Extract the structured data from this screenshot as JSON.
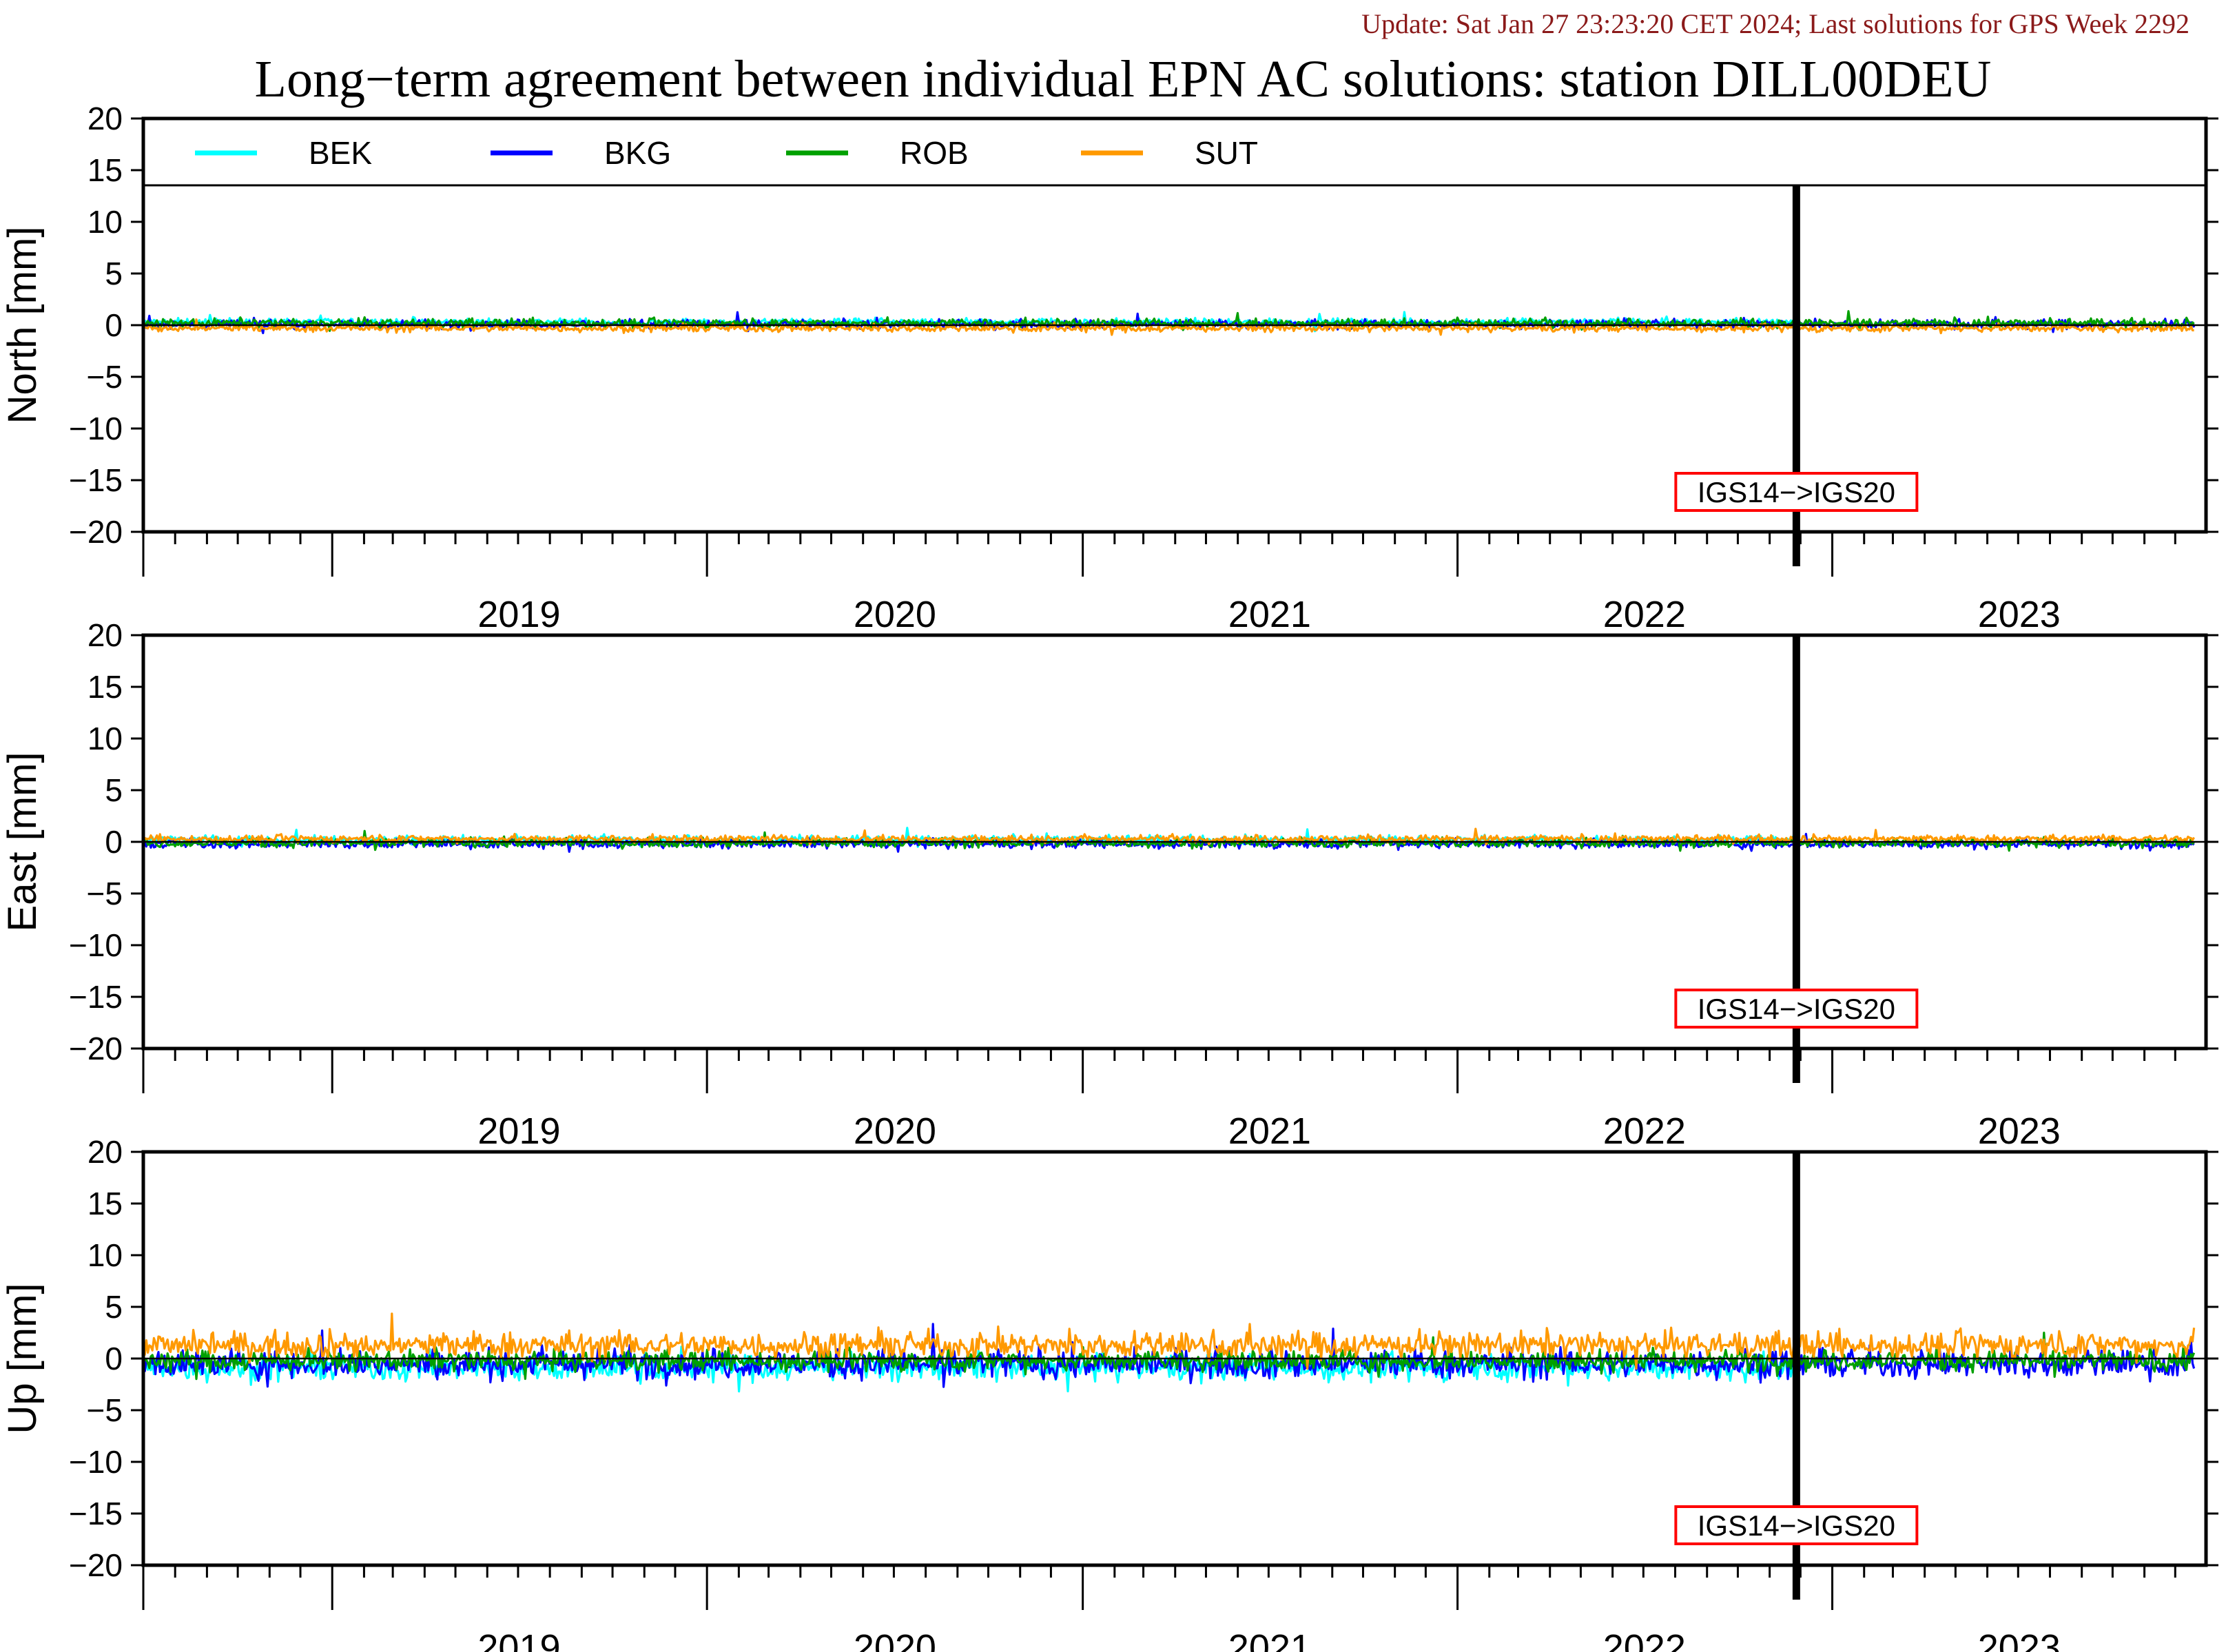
{
  "header": {
    "update_text": "Update: Sat Jan 27 23:23:20 CET 2024; Last solutions for GPS Week 2292",
    "update_color": "#8b1a1a"
  },
  "chart_data": {
    "type": "line",
    "title": "Long−term agreement between individual EPN AC solutions: station DILL00DEU",
    "x_range": [
      "2018-07-01",
      "2023-12-31"
    ],
    "x_tick_labels": [
      "2019",
      "2020",
      "2021",
      "2022",
      "2023"
    ],
    "y_range": [
      -20,
      20
    ],
    "y_ticks": [
      20,
      15,
      10,
      5,
      0,
      -5,
      -10,
      -15,
      -20
    ],
    "y_tick_labels": [
      "20",
      "15",
      "10",
      "5",
      "0",
      "−5",
      "−10",
      "−15",
      "−20"
    ],
    "grid": false,
    "legend": {
      "placement": "top",
      "entries": [
        {
          "name": "BEK",
          "color": "#00ffff"
        },
        {
          "name": "BKG",
          "color": "#0000ff"
        },
        {
          "name": "ROB",
          "color": "#00a000"
        },
        {
          "name": "SUT",
          "color": "#ff9900"
        }
      ]
    },
    "event": {
      "date": "2022-11-27",
      "label": "IGS14−>IGS20",
      "label_box_color": "#ff0000"
    },
    "panels": [
      {
        "ylabel": "North [mm]",
        "has_legend": true,
        "series": [
          {
            "name": "BEK",
            "x_start": "2018-07-01",
            "x_end": "2022-11-27",
            "mean_mm": 0.3,
            "noise_mm": 0.25
          },
          {
            "name": "BKG",
            "x_start": "2018-07-01",
            "x_end": "2023-12-20",
            "mean_mm": 0.1,
            "noise_mm": 0.3
          },
          {
            "name": "ROB",
            "x_start": "2018-07-01",
            "x_end": "2023-12-20",
            "mean_mm": 0.2,
            "noise_mm": 0.3
          },
          {
            "name": "SUT",
            "x_start": "2018-07-01",
            "x_end": "2023-12-20",
            "mean_mm": -0.3,
            "noise_mm": 0.25
          }
        ]
      },
      {
        "ylabel": "East [mm]",
        "has_legend": false,
        "series": [
          {
            "name": "BEK",
            "x_start": "2018-07-01",
            "x_end": "2022-11-27",
            "mean_mm": 0.2,
            "noise_mm": 0.3
          },
          {
            "name": "BKG",
            "x_start": "2018-07-01",
            "x_end": "2023-12-20",
            "mean_mm": -0.2,
            "noise_mm": 0.3
          },
          {
            "name": "ROB",
            "x_start": "2018-07-01",
            "x_end": "2023-12-20",
            "mean_mm": -0.1,
            "noise_mm": 0.3
          },
          {
            "name": "SUT",
            "x_start": "2018-07-01",
            "x_end": "2023-12-20",
            "mean_mm": 0.3,
            "noise_mm": 0.25
          }
        ]
      },
      {
        "ylabel": "Up [mm]",
        "has_legend": false,
        "series": [
          {
            "name": "BEK",
            "x_start": "2018-07-01",
            "x_end": "2022-11-27",
            "mean_mm": -0.9,
            "noise_mm": 0.9
          },
          {
            "name": "BKG",
            "x_start": "2018-07-01",
            "x_end": "2023-12-20",
            "mean_mm": -0.5,
            "noise_mm": 1.0
          },
          {
            "name": "ROB",
            "x_start": "2018-07-01",
            "x_end": "2023-12-20",
            "mean_mm": -0.2,
            "noise_mm": 0.7
          },
          {
            "name": "SUT",
            "x_start": "2018-07-01",
            "x_end": "2023-12-20",
            "mean_mm": 1.3,
            "noise_mm": 0.9
          }
        ]
      }
    ]
  }
}
